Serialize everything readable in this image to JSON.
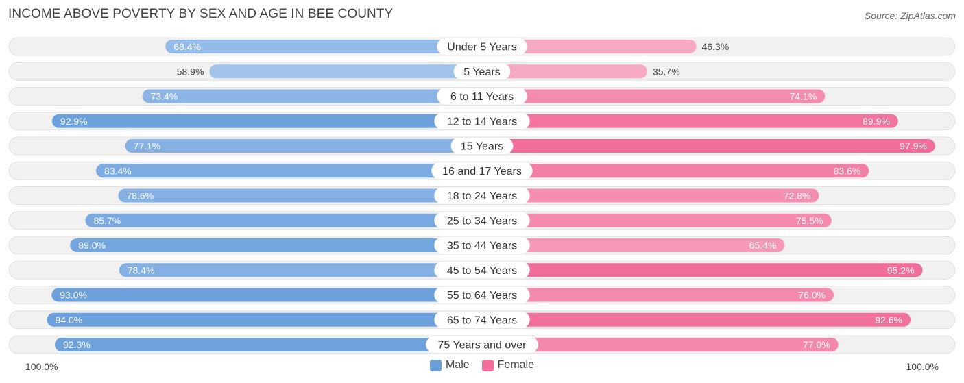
{
  "chart_data": {
    "type": "bar",
    "orientation": "horizontal-diverging",
    "title": "INCOME ABOVE POVERTY BY SEX AND AGE IN BEE COUNTY",
    "source": "Source: ZipAtlas.com",
    "categories": [
      "Under 5 Years",
      "5 Years",
      "6 to 11 Years",
      "12 to 14 Years",
      "15 Years",
      "16 and 17 Years",
      "18 to 24 Years",
      "25 to 34 Years",
      "35 to 44 Years",
      "45 to 54 Years",
      "55 to 64 Years",
      "65 to 74 Years",
      "75 Years and over"
    ],
    "series": [
      {
        "name": "Male",
        "values": [
          68.4,
          58.9,
          73.4,
          92.9,
          77.1,
          83.4,
          78.6,
          85.7,
          89.0,
          78.4,
          93.0,
          94.0,
          92.3
        ],
        "labels": [
          "68.4%",
          "58.9%",
          "73.4%",
          "92.9%",
          "77.1%",
          "83.4%",
          "78.6%",
          "85.7%",
          "89.0%",
          "78.4%",
          "93.0%",
          "94.0%",
          "92.3%"
        ]
      },
      {
        "name": "Female",
        "values": [
          46.3,
          35.7,
          74.1,
          89.9,
          97.9,
          83.6,
          72.8,
          75.5,
          65.4,
          95.2,
          76.0,
          92.6,
          77.0
        ],
        "labels": [
          "46.3%",
          "35.7%",
          "74.1%",
          "89.9%",
          "97.9%",
          "83.6%",
          "72.8%",
          "75.5%",
          "65.4%",
          "95.2%",
          "76.0%",
          "92.6%",
          "77.0%"
        ]
      }
    ],
    "axis": {
      "left_label": "100.0%",
      "right_label": "100.0%",
      "max": 100
    },
    "colors": {
      "male_light": "#a9c8ec",
      "male_dark": "#6a9fdc",
      "female_light": "#f7a8c2",
      "female_dark": "#f06e99",
      "track": "#f1f1f1",
      "track_border": "#e2e2e2"
    },
    "legend": {
      "male": "Male",
      "female": "Female"
    }
  }
}
